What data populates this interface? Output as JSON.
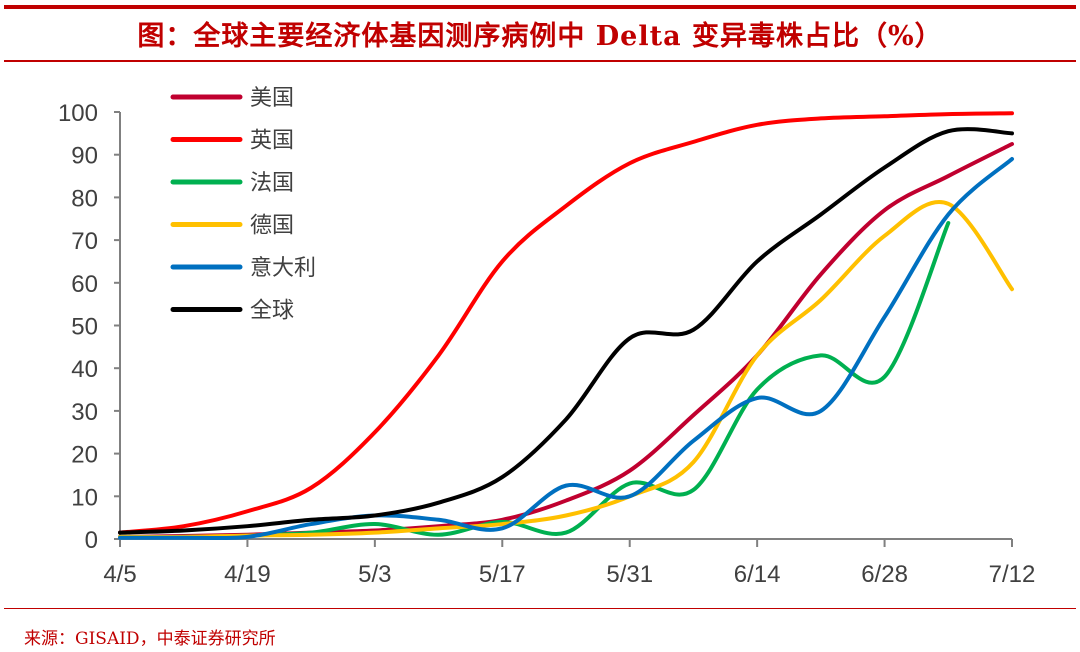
{
  "title": "图：全球主要经济体基因测序病例中 Delta 变异毒株占比（%）",
  "source": "来源：GISAID，中泰证券研究所",
  "chart_data": {
    "type": "line",
    "title": "图：全球主要经济体基因测序病例中 Delta 变异毒株占比（%）",
    "xlabel": "",
    "ylabel": "",
    "x_ticks": [
      "4/5",
      "4/19",
      "5/3",
      "5/17",
      "5/31",
      "6/14",
      "6/28",
      "7/12"
    ],
    "x": [
      "4/5",
      "4/12",
      "4/19",
      "4/26",
      "5/3",
      "5/10",
      "5/17",
      "5/24",
      "5/31",
      "6/7",
      "6/14",
      "6/21",
      "6/28",
      "7/5",
      "7/12"
    ],
    "ylim": [
      0,
      100
    ],
    "y_ticks": [
      0,
      10,
      20,
      30,
      40,
      50,
      60,
      70,
      80,
      90,
      100
    ],
    "grid": false,
    "legend_position": "top-left",
    "series": [
      {
        "name": "美国",
        "color": "#c0002f",
        "values": [
          0.5,
          0.7,
          1,
          1.5,
          2,
          3,
          4.5,
          9,
          16,
          29,
          43,
          62,
          77,
          85,
          92.5
        ]
      },
      {
        "name": "英国",
        "color": "#ff0000",
        "values": [
          1.5,
          3,
          6.5,
          12,
          25,
          43,
          65,
          78,
          88,
          93,
          97,
          98.5,
          99,
          99.5,
          99.7
        ]
      },
      {
        "name": "法国",
        "color": "#00b050",
        "values": [
          0.5,
          0.5,
          0.8,
          1.5,
          3.5,
          1,
          4,
          1.5,
          13,
          11.5,
          35,
          43,
          38,
          74,
          null
        ]
      },
      {
        "name": "德国",
        "color": "#ffc000",
        "values": [
          0.5,
          0.5,
          0.8,
          1,
          1.5,
          2.5,
          3.5,
          5.5,
          10,
          18,
          43,
          56,
          71,
          78.5,
          58.5
        ]
      },
      {
        "name": "意大利",
        "color": "#0070c0",
        "values": [
          0.3,
          0.3,
          0.5,
          3.5,
          5.5,
          4.5,
          2.5,
          12.5,
          10,
          23,
          33,
          30,
          52,
          76,
          89
        ]
      },
      {
        "name": "全球",
        "color": "#000000",
        "values": [
          1.5,
          2,
          3,
          4.5,
          5.5,
          8.5,
          14.5,
          28,
          47,
          49,
          65,
          76,
          87,
          95.5,
          95
        ]
      }
    ]
  }
}
